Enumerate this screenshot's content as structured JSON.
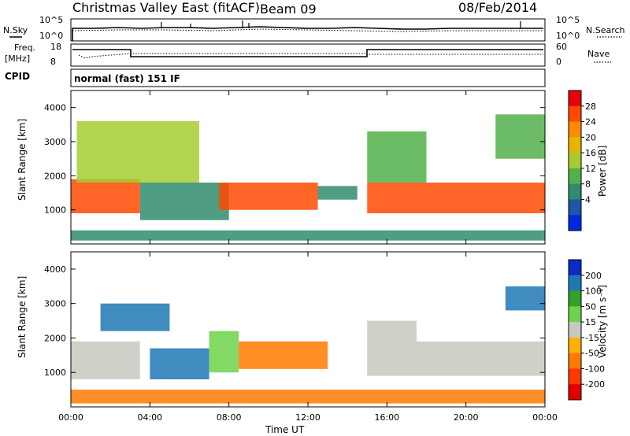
{
  "header": {
    "station": "Christmas Valley East (fitACF)",
    "beam": "Beam 09",
    "date": "08/Feb/2014"
  },
  "panels": {
    "nsky_label": "N.Sky",
    "nsearch_label": "N.Search",
    "freq_label_line1": "Freq.",
    "freq_label_line2": "[MHz]",
    "nave_label": "Nave",
    "cpid_label": "CPID",
    "cpid_value": "normal (fast) 151 IF",
    "noise_ticks": [
      "10^5",
      "10^0"
    ],
    "freq_ticks": [
      "18",
      "8"
    ],
    "nave_ticks": [
      "60",
      "0"
    ]
  },
  "chart_data": [
    {
      "type": "heatmap",
      "name": "power",
      "ylabel": "Slant Range [km]",
      "ylim": [
        0,
        4500
      ],
      "yticks": [
        "4000",
        "3000",
        "2000",
        "1000"
      ],
      "xlabel": "Time UT",
      "xticks": [
        "00:00",
        "04:00",
        "08:00",
        "12:00",
        "16:00",
        "20:00",
        "00:00"
      ],
      "colorbar": {
        "label": "Power [dB]",
        "ticks": [
          "28",
          "24",
          "20",
          "16",
          "12",
          "8",
          "4"
        ],
        "colors": [
          "#e8000b",
          "#ff4a00",
          "#ff8a00",
          "#e6b400",
          "#a6cc32",
          "#52b04a",
          "#2f8c6e",
          "#1d55a8",
          "#0028e0"
        ]
      },
      "echo_regions": [
        {
          "t0": 0.0,
          "t1": 3.5,
          "r0": 900,
          "r1": 1900,
          "level": 26
        },
        {
          "t0": 0.3,
          "t1": 6.5,
          "r0": 1800,
          "r1": 3600,
          "level": 14
        },
        {
          "t0": 3.5,
          "t1": 8.0,
          "r0": 700,
          "r1": 1800,
          "level": 8
        },
        {
          "t0": 7.5,
          "t1": 12.5,
          "r0": 1000,
          "r1": 1800,
          "level": 26
        },
        {
          "t0": 12.5,
          "t1": 14.5,
          "r0": 1300,
          "r1": 1700,
          "level": 6
        },
        {
          "t0": 15.0,
          "t1": 24.0,
          "r0": 900,
          "r1": 1800,
          "level": 26
        },
        {
          "t0": 15.0,
          "t1": 18.0,
          "r0": 1800,
          "r1": 3300,
          "level": 12
        },
        {
          "t0": 21.5,
          "t1": 24.0,
          "r0": 2500,
          "r1": 3800,
          "level": 10
        },
        {
          "t0": 0.0,
          "t1": 24.0,
          "r0": 100,
          "r1": 400,
          "level": 6
        }
      ]
    },
    {
      "type": "heatmap",
      "name": "velocity",
      "ylabel": "Slant Range [km]",
      "ylim": [
        0,
        4500
      ],
      "yticks": [
        "4000",
        "3000",
        "2000",
        "1000"
      ],
      "xlabel": "Time UT",
      "xticks": [
        "00:00",
        "04:00",
        "08:00",
        "12:00",
        "16:00",
        "20:00",
        "00:00"
      ],
      "colorbar": {
        "label": "Velocity [m s⁻¹]",
        "ticks": [
          "200",
          "100",
          "50",
          "15",
          "-15",
          "-50",
          "-100",
          "-200"
        ],
        "colors": [
          "#0a2bc8",
          "#1f78b4",
          "#33a02c",
          "#6cd44a",
          "#c8c8c0",
          "#ffb000",
          "#ff7a00",
          "#ff3800",
          "#e00000"
        ]
      },
      "echo_regions": [
        {
          "t0": 0.0,
          "t1": 3.5,
          "r0": 800,
          "r1": 1900,
          "level": 0
        },
        {
          "t0": 1.5,
          "t1": 5.0,
          "r0": 2200,
          "r1": 3000,
          "level": 200
        },
        {
          "t0": 4.0,
          "t1": 7.0,
          "r0": 800,
          "r1": 1700,
          "level": 200
        },
        {
          "t0": 7.0,
          "t1": 8.5,
          "r0": 1000,
          "r1": 2200,
          "level": 70
        },
        {
          "t0": 8.5,
          "t1": 13.0,
          "r0": 1100,
          "r1": 1900,
          "level": -60
        },
        {
          "t0": 15.0,
          "t1": 24.0,
          "r0": 900,
          "r1": 1900,
          "level": 0
        },
        {
          "t0": 15.0,
          "t1": 17.5,
          "r0": 1900,
          "r1": 2500,
          "level": 0
        },
        {
          "t0": 22.0,
          "t1": 24.0,
          "r0": 2800,
          "r1": 3500,
          "level": 200
        },
        {
          "t0": 0.0,
          "t1": 24.0,
          "r0": 100,
          "r1": 500,
          "level": -40
        }
      ]
    }
  ]
}
